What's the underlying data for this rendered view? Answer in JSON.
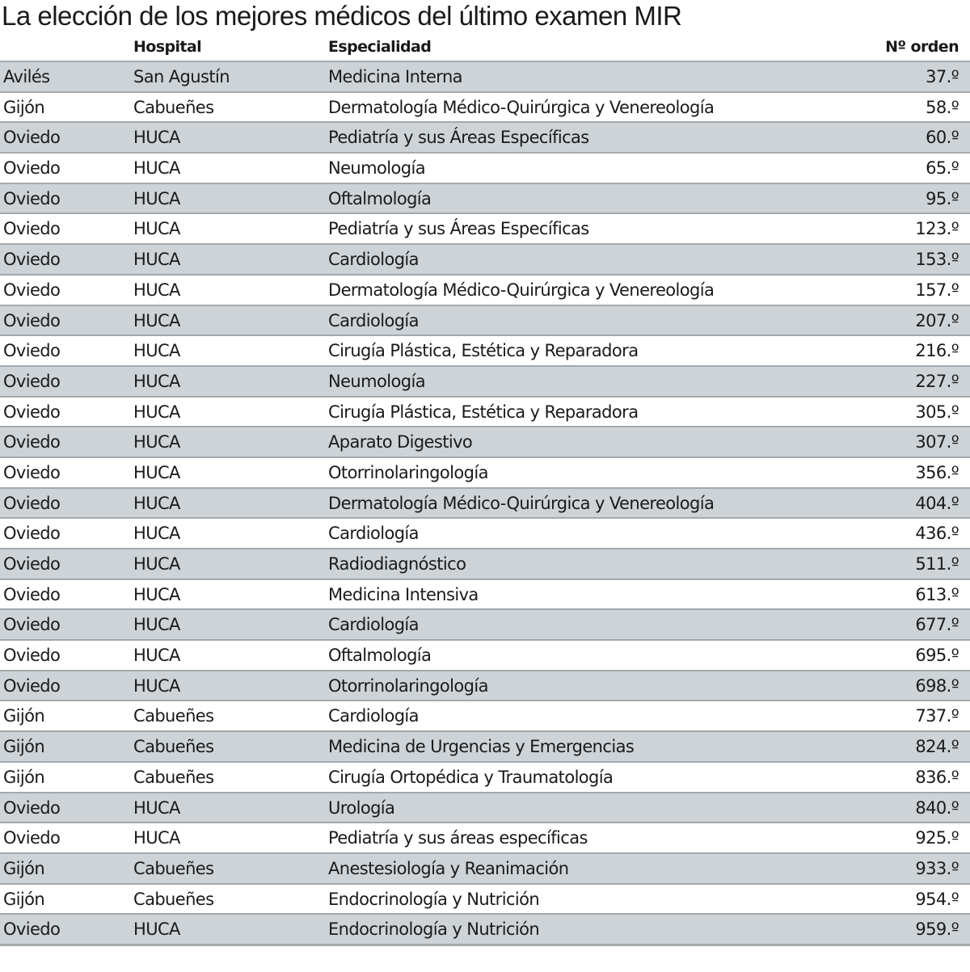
{
  "title": "La elección de los mejores médicos del último examen MIR",
  "columns": {
    "city": "",
    "hospital": "Hospital",
    "specialty": "Especialidad",
    "rank": "Nº orden"
  },
  "rows": [
    {
      "city": "Avilés",
      "hospital": "San Agustín",
      "specialty": "Medicina Interna",
      "rank": "37.º"
    },
    {
      "city": "Gijón",
      "hospital": "Cabueñes",
      "specialty": "Dermatología Médico-Quirúrgica y Venereología",
      "rank": "58.º"
    },
    {
      "city": "Oviedo",
      "hospital": "HUCA",
      "specialty": "Pediatría y sus Áreas Específicas",
      "rank": "60.º"
    },
    {
      "city": "Oviedo",
      "hospital": "HUCA",
      "specialty": "Neumología",
      "rank": "65.º"
    },
    {
      "city": "Oviedo",
      "hospital": "HUCA",
      "specialty": "Oftalmología",
      "rank": "95.º"
    },
    {
      "city": "Oviedo",
      "hospital": "HUCA",
      "specialty": "Pediatría y sus Áreas Específicas",
      "rank": "123.º"
    },
    {
      "city": "Oviedo",
      "hospital": "HUCA",
      "specialty": "Cardiología",
      "rank": "153.º"
    },
    {
      "city": "Oviedo",
      "hospital": "HUCA",
      "specialty": "Dermatología Médico-Quirúrgica y Venereología",
      "rank": "157.º"
    },
    {
      "city": "Oviedo",
      "hospital": "HUCA",
      "specialty": "Cardiología",
      "rank": "207.º"
    },
    {
      "city": "Oviedo",
      "hospital": "HUCA",
      "specialty": "Cirugía Plástica, Estética y Reparadora",
      "rank": "216.º"
    },
    {
      "city": "Oviedo",
      "hospital": "HUCA",
      "specialty": "Neumología",
      "rank": "227.º"
    },
    {
      "city": "Oviedo",
      "hospital": "HUCA",
      "specialty": "Cirugía Plástica, Estética y Reparadora",
      "rank": "305.º"
    },
    {
      "city": "Oviedo",
      "hospital": "HUCA",
      "specialty": "Aparato Digestivo",
      "rank": "307.º"
    },
    {
      "city": "Oviedo",
      "hospital": "HUCA",
      "specialty": "Otorrinolaringología",
      "rank": "356.º"
    },
    {
      "city": "Oviedo",
      "hospital": "HUCA",
      "specialty": "Dermatología Médico-Quirúrgica y Venereología",
      "rank": "404.º"
    },
    {
      "city": "Oviedo",
      "hospital": "HUCA",
      "specialty": "Cardiología",
      "rank": "436.º"
    },
    {
      "city": "Oviedo",
      "hospital": "HUCA",
      "specialty": "Radiodiagnóstico",
      "rank": "511.º"
    },
    {
      "city": "Oviedo",
      "hospital": "HUCA",
      "specialty": "Medicina Intensiva",
      "rank": "613.º"
    },
    {
      "city": "Oviedo",
      "hospital": "HUCA",
      "specialty": "Cardiología",
      "rank": "677.º"
    },
    {
      "city": "Oviedo",
      "hospital": "HUCA",
      "specialty": "Oftalmología",
      "rank": "695.º"
    },
    {
      "city": "Oviedo",
      "hospital": "HUCA",
      "specialty": "Otorrinolaringología",
      "rank": "698.º"
    },
    {
      "city": "Gijón",
      "hospital": "Cabueñes",
      "specialty": "Cardiología",
      "rank": "737.º"
    },
    {
      "city": "Gijón",
      "hospital": "Cabueñes",
      "specialty": "Medicina de Urgencias y Emergencias",
      "rank": "824.º"
    },
    {
      "city": "Gijón",
      "hospital": "Cabueñes",
      "specialty": "Cirugía Ortopédica y Traumatología",
      "rank": "836.º"
    },
    {
      "city": "Oviedo",
      "hospital": "HUCA",
      "specialty": "Urología",
      "rank": "840.º"
    },
    {
      "city": "Oviedo",
      "hospital": "HUCA",
      "specialty": "Pediatría y sus áreas específicas",
      "rank": "925.º"
    },
    {
      "city": "Gijón",
      "hospital": "Cabueñes",
      "specialty": "Anestesiología y Reanimación",
      "rank": "933.º"
    },
    {
      "city": "Gijón",
      "hospital": "Cabueñes",
      "specialty": "Endocrinología y Nutrición",
      "rank": "954.º"
    },
    {
      "city": "Oviedo",
      "hospital": "HUCA",
      "specialty": "Endocrinología y Nutrición",
      "rank": "959.º"
    }
  ],
  "colors": {
    "row_shade": "#cdd3d7",
    "rule": "#a4a9ad",
    "text": "#1a1a1a"
  }
}
